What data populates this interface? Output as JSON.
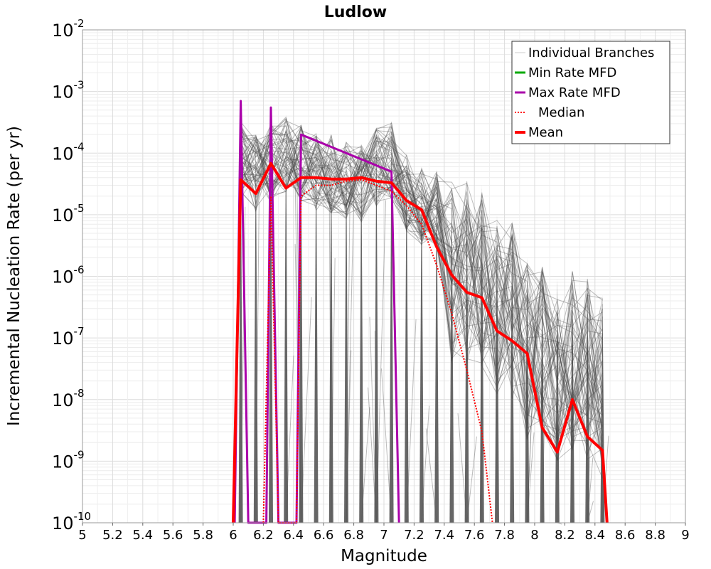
{
  "chart_data": {
    "type": "line",
    "title": "Ludlow",
    "xlabel": "Magnitude",
    "ylabel": "Incremental Nucleation Rate (per yr)",
    "xlim": [
      5,
      9
    ],
    "ylim": [
      1e-10,
      0.01
    ],
    "yscale": "log",
    "grid": true,
    "legend_position": "top-right",
    "x_ticks": [
      "5",
      "5.2",
      "5.4",
      "5.6",
      "5.8",
      "6",
      "6.2",
      "6.4",
      "6.6",
      "6.8",
      "7",
      "7.2",
      "7.4",
      "7.6",
      "7.8",
      "8",
      "8.2",
      "8.4",
      "8.6",
      "8.8",
      "9"
    ],
    "y_ticks": [
      {
        "base": "10",
        "exp": "-2"
      },
      {
        "base": "10",
        "exp": "-3"
      },
      {
        "base": "10",
        "exp": "-4"
      },
      {
        "base": "10",
        "exp": "-5"
      },
      {
        "base": "10",
        "exp": "-6"
      },
      {
        "base": "10",
        "exp": "-7"
      },
      {
        "base": "10",
        "exp": "-8"
      },
      {
        "base": "10",
        "exp": "-9"
      },
      {
        "base": "10",
        "exp": "-10"
      }
    ],
    "series": [
      {
        "name": "Mean",
        "color": "#ff0000",
        "style": "solid-thick",
        "points": [
          [
            6.0,
            1e-10
          ],
          [
            6.05,
            3.7e-05
          ],
          [
            6.15,
            2.2e-05
          ],
          [
            6.25,
            6.8e-05
          ],
          [
            6.35,
            2.7e-05
          ],
          [
            6.45,
            4e-05
          ],
          [
            6.55,
            4e-05
          ],
          [
            6.65,
            3.8e-05
          ],
          [
            6.75,
            3.8e-05
          ],
          [
            6.85,
            4e-05
          ],
          [
            6.95,
            3.5e-05
          ],
          [
            7.05,
            3.3e-05
          ],
          [
            7.15,
            1.7e-05
          ],
          [
            7.25,
            1.2e-05
          ],
          [
            7.35,
            3e-06
          ],
          [
            7.45,
            1.05e-06
          ],
          [
            7.55,
            5.5e-07
          ],
          [
            7.65,
            4.5e-07
          ],
          [
            7.75,
            1.3e-07
          ],
          [
            7.85,
            9e-08
          ],
          [
            7.95,
            5.6e-08
          ],
          [
            8.05,
            3.5e-09
          ],
          [
            8.15,
            1.4e-09
          ],
          [
            8.25,
            1e-08
          ],
          [
            8.35,
            2.5e-09
          ],
          [
            8.45,
            1.5e-09
          ],
          [
            8.48,
            1e-10
          ]
        ]
      },
      {
        "name": "Median",
        "color": "#ff0000",
        "style": "dotted",
        "points": [
          [
            6.2,
            1e-10
          ],
          [
            6.25,
            2e-05
          ],
          [
            6.3,
            1e-10
          ],
          [
            6.42,
            1e-10
          ],
          [
            6.45,
            2e-05
          ],
          [
            6.55,
            3e-05
          ],
          [
            6.65,
            3e-05
          ],
          [
            6.75,
            3.5e-05
          ],
          [
            6.85,
            3.7e-05
          ],
          [
            6.95,
            3e-05
          ],
          [
            7.05,
            2.4e-05
          ],
          [
            7.15,
            1.4e-05
          ],
          [
            7.25,
            7e-06
          ],
          [
            7.35,
            1.5e-06
          ],
          [
            7.45,
            2.5e-07
          ],
          [
            7.55,
            3e-08
          ],
          [
            7.65,
            3e-09
          ],
          [
            7.72,
            1e-10
          ]
        ]
      },
      {
        "name": "Max Rate MFD",
        "color": "#aa00aa",
        "style": "solid",
        "points": [
          [
            6.01,
            1e-10
          ],
          [
            6.05,
            0.0007
          ],
          [
            6.1,
            1e-10
          ],
          [
            6.22,
            1e-10
          ],
          [
            6.25,
            0.00055
          ],
          [
            6.3,
            1e-10
          ],
          [
            6.42,
            1e-10
          ],
          [
            6.45,
            0.0002
          ],
          [
            7.05,
            5e-05
          ],
          [
            7.1,
            1e-10
          ]
        ]
      },
      {
        "name": "Min Rate MFD",
        "color": "#00aa00",
        "style": "solid",
        "points": []
      }
    ],
    "branch_peaks": [
      {
        "x": 6.05,
        "y": 0.00035
      },
      {
        "x": 6.15,
        "y": 0.0002
      },
      {
        "x": 6.25,
        "y": 0.0003
      },
      {
        "x": 6.35,
        "y": 0.00042
      },
      {
        "x": 6.45,
        "y": 0.0003
      },
      {
        "x": 6.55,
        "y": 0.00022
      },
      {
        "x": 6.65,
        "y": 0.0002
      },
      {
        "x": 6.75,
        "y": 0.00016
      },
      {
        "x": 6.85,
        "y": 0.00014
      },
      {
        "x": 6.95,
        "y": 0.00026
      },
      {
        "x": 7.05,
        "y": 0.00032
      },
      {
        "x": 7.15,
        "y": 0.0001
      },
      {
        "x": 7.25,
        "y": 6e-05
      },
      {
        "x": 7.35,
        "y": 5.5e-05
      },
      {
        "x": 7.45,
        "y": 3.5e-05
      },
      {
        "x": 7.55,
        "y": 3.5e-05
      },
      {
        "x": 7.65,
        "y": 3e-05
      },
      {
        "x": 7.75,
        "y": 1e-05
      },
      {
        "x": 7.85,
        "y": 8e-06
      },
      {
        "x": 7.95,
        "y": 2e-06
      },
      {
        "x": 8.05,
        "y": 1.5e-06
      },
      {
        "x": 8.15,
        "y": 9e-07
      },
      {
        "x": 8.25,
        "y": 1.3e-06
      },
      {
        "x": 8.35,
        "y": 1e-06
      },
      {
        "x": 8.45,
        "y": 5e-07
      }
    ],
    "legend": [
      {
        "label": "Individual Branches",
        "color": "#cccccc",
        "style": "solid"
      },
      {
        "label": "Min Rate MFD",
        "color": "#00aa00",
        "style": "solid"
      },
      {
        "label": "Max Rate MFD",
        "color": "#aa00aa",
        "style": "solid"
      },
      {
        "label": "Median",
        "color": "#ff0000",
        "style": "dotted"
      },
      {
        "label": "Mean",
        "color": "#ff0000",
        "style": "solid-thick"
      }
    ]
  }
}
